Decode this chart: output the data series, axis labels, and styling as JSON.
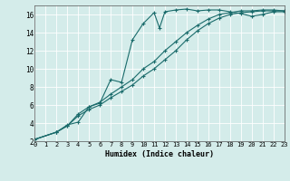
{
  "xlabel": "Humidex (Indice chaleur)",
  "bg_color": "#d4ecea",
  "grid_color": "#b8d8d4",
  "line_color": "#1a6b6b",
  "xlim": [
    0,
    23
  ],
  "ylim": [
    2,
    17
  ],
  "yticks": [
    2,
    4,
    6,
    8,
    10,
    12,
    14,
    16
  ],
  "xticks": [
    0,
    1,
    2,
    3,
    4,
    5,
    6,
    7,
    8,
    9,
    10,
    11,
    12,
    13,
    14,
    15,
    16,
    17,
    18,
    19,
    20,
    21,
    22,
    23
  ],
  "series": [
    {
      "x": [
        0,
        2,
        3,
        4,
        5,
        6,
        7,
        8,
        9,
        10,
        11,
        11.5,
        12,
        13,
        14,
        15,
        16,
        17,
        18,
        19,
        20,
        21,
        22,
        23
      ],
      "y": [
        2.2,
        3.0,
        3.8,
        4.1,
        5.8,
        6.2,
        8.8,
        8.5,
        13.2,
        15.0,
        16.2,
        14.5,
        16.3,
        16.5,
        16.6,
        16.4,
        16.5,
        16.5,
        16.3,
        16.1,
        15.8,
        16.0,
        16.3,
        16.3
      ]
    },
    {
      "x": [
        0,
        2,
        3,
        4,
        5,
        6,
        7,
        8,
        9,
        10,
        11,
        12,
        13,
        14,
        15,
        16,
        17,
        18,
        19,
        20,
        21,
        22,
        23
      ],
      "y": [
        2.2,
        3.0,
        3.7,
        4.8,
        5.5,
        6.0,
        6.8,
        7.5,
        8.2,
        9.2,
        10.0,
        11.0,
        12.0,
        13.2,
        14.2,
        15.0,
        15.6,
        16.0,
        16.2,
        16.3,
        16.4,
        16.4,
        16.4
      ]
    },
    {
      "x": [
        0,
        2,
        3,
        4,
        5,
        6,
        7,
        8,
        9,
        10,
        11,
        12,
        13,
        14,
        15,
        16,
        17,
        18,
        19,
        20,
        21,
        22,
        23
      ],
      "y": [
        2.2,
        3.0,
        3.7,
        5.0,
        5.8,
        6.3,
        7.2,
        8.0,
        8.8,
        10.0,
        10.8,
        12.0,
        13.0,
        14.0,
        14.8,
        15.5,
        16.0,
        16.2,
        16.4,
        16.4,
        16.5,
        16.5,
        16.4
      ]
    }
  ]
}
